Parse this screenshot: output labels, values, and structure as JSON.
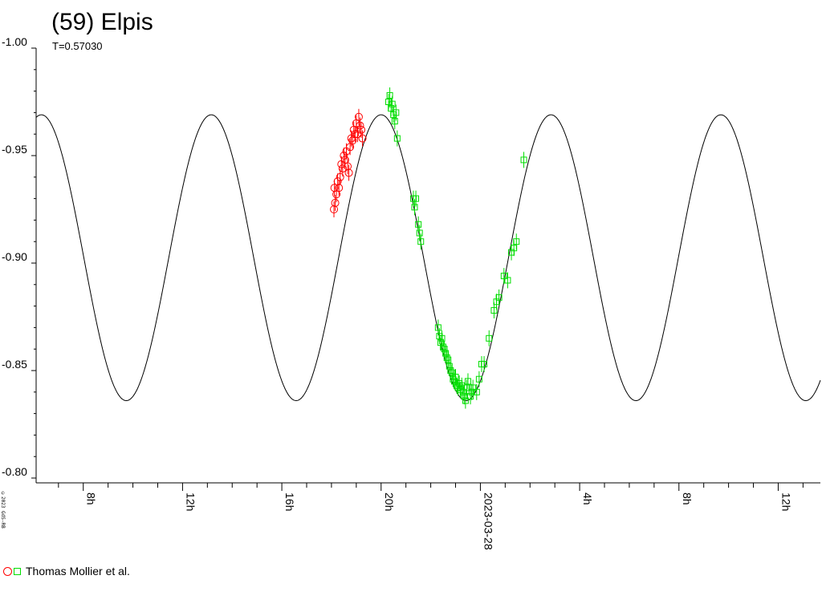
{
  "chart_data": {
    "type": "scatter",
    "title": "(59) Elpis",
    "subtitle": "T=0.57030",
    "y_ticks": [
      "-1.00",
      "-0.95",
      "-0.90",
      "-0.85",
      "-0.80"
    ],
    "ylim": [
      -1.0,
      -0.8
    ],
    "y_inverted": true,
    "x_unit": "hours",
    "xlim_hours": [
      6.1,
      37.7
    ],
    "x_tick_labels": [
      {
        "hour": 8,
        "label": "8h"
      },
      {
        "hour": 12,
        "label": "12h"
      },
      {
        "hour": 16,
        "label": "16h"
      },
      {
        "hour": 20,
        "label": "20h"
      },
      {
        "hour": 24,
        "label": "2023-03-28"
      },
      {
        "hour": 28,
        "label": "4h"
      },
      {
        "hour": 32,
        "label": "8h"
      },
      {
        "hour": 36,
        "label": "12h"
      }
    ],
    "model_curve": {
      "mean": -0.9025,
      "amplitude": 0.0665,
      "period_hours": 6.8444,
      "max_bright_hour": 20.0
    },
    "series": [
      {
        "marker": "circle",
        "color": "#ff0000",
        "points": [
          [
            18.1,
            -0.925
          ],
          [
            18.12,
            -0.935
          ],
          [
            18.15,
            -0.928
          ],
          [
            18.2,
            -0.932
          ],
          [
            18.25,
            -0.938
          ],
          [
            18.3,
            -0.935
          ],
          [
            18.35,
            -0.94
          ],
          [
            18.4,
            -0.946
          ],
          [
            18.45,
            -0.944
          ],
          [
            18.5,
            -0.95
          ],
          [
            18.55,
            -0.948
          ],
          [
            18.6,
            -0.952
          ],
          [
            18.65,
            -0.945
          ],
          [
            18.7,
            -0.942
          ],
          [
            18.75,
            -0.954
          ],
          [
            18.8,
            -0.958
          ],
          [
            18.85,
            -0.957
          ],
          [
            18.9,
            -0.962
          ],
          [
            18.95,
            -0.96
          ],
          [
            19.0,
            -0.965
          ],
          [
            19.05,
            -0.96
          ],
          [
            19.1,
            -0.968
          ],
          [
            19.15,
            -0.964
          ],
          [
            19.2,
            -0.962
          ],
          [
            19.25,
            -0.958
          ]
        ]
      },
      {
        "marker": "square",
        "color": "#00dd00",
        "points": [
          [
            20.3,
            -0.975
          ],
          [
            20.35,
            -0.978
          ],
          [
            20.4,
            -0.972
          ],
          [
            20.45,
            -0.974
          ],
          [
            20.5,
            -0.969
          ],
          [
            20.55,
            -0.966
          ],
          [
            20.6,
            -0.97
          ],
          [
            20.65,
            -0.958
          ],
          [
            21.3,
            -0.93
          ],
          [
            21.35,
            -0.926
          ],
          [
            21.4,
            -0.93
          ],
          [
            21.5,
            -0.918
          ],
          [
            21.55,
            -0.914
          ],
          [
            21.6,
            -0.91
          ],
          [
            22.3,
            -0.87
          ],
          [
            22.35,
            -0.866
          ],
          [
            22.4,
            -0.863
          ],
          [
            22.45,
            -0.865
          ],
          [
            22.5,
            -0.861
          ],
          [
            22.55,
            -0.86
          ],
          [
            22.6,
            -0.858
          ],
          [
            22.65,
            -0.856
          ],
          [
            22.7,
            -0.855
          ],
          [
            22.75,
            -0.852
          ],
          [
            22.8,
            -0.85
          ],
          [
            22.85,
            -0.849
          ],
          [
            22.9,
            -0.846
          ],
          [
            22.95,
            -0.845
          ],
          [
            23.0,
            -0.847
          ],
          [
            23.05,
            -0.843
          ],
          [
            23.1,
            -0.842
          ],
          [
            23.15,
            -0.844
          ],
          [
            23.2,
            -0.841
          ],
          [
            23.25,
            -0.843
          ],
          [
            23.3,
            -0.84
          ],
          [
            23.35,
            -0.838
          ],
          [
            23.4,
            -0.836
          ],
          [
            23.45,
            -0.842
          ],
          [
            23.5,
            -0.845
          ],
          [
            23.6,
            -0.838
          ],
          [
            23.65,
            -0.84
          ],
          [
            23.7,
            -0.842
          ],
          [
            23.85,
            -0.84
          ],
          [
            23.95,
            -0.846
          ],
          [
            24.05,
            -0.853
          ],
          [
            24.15,
            -0.853
          ],
          [
            24.35,
            -0.865
          ],
          [
            24.55,
            -0.878
          ],
          [
            24.65,
            -0.882
          ],
          [
            24.75,
            -0.884
          ],
          [
            24.95,
            -0.894
          ],
          [
            25.1,
            -0.892
          ],
          [
            25.25,
            -0.905
          ],
          [
            25.35,
            -0.907
          ],
          [
            25.45,
            -0.91
          ],
          [
            25.75,
            -0.948
          ]
        ]
      }
    ],
    "legend": {
      "label": "Thomas Mollier et al.",
      "placement": "bottom-left"
    },
    "credit": "©2023 GdS-RB"
  }
}
